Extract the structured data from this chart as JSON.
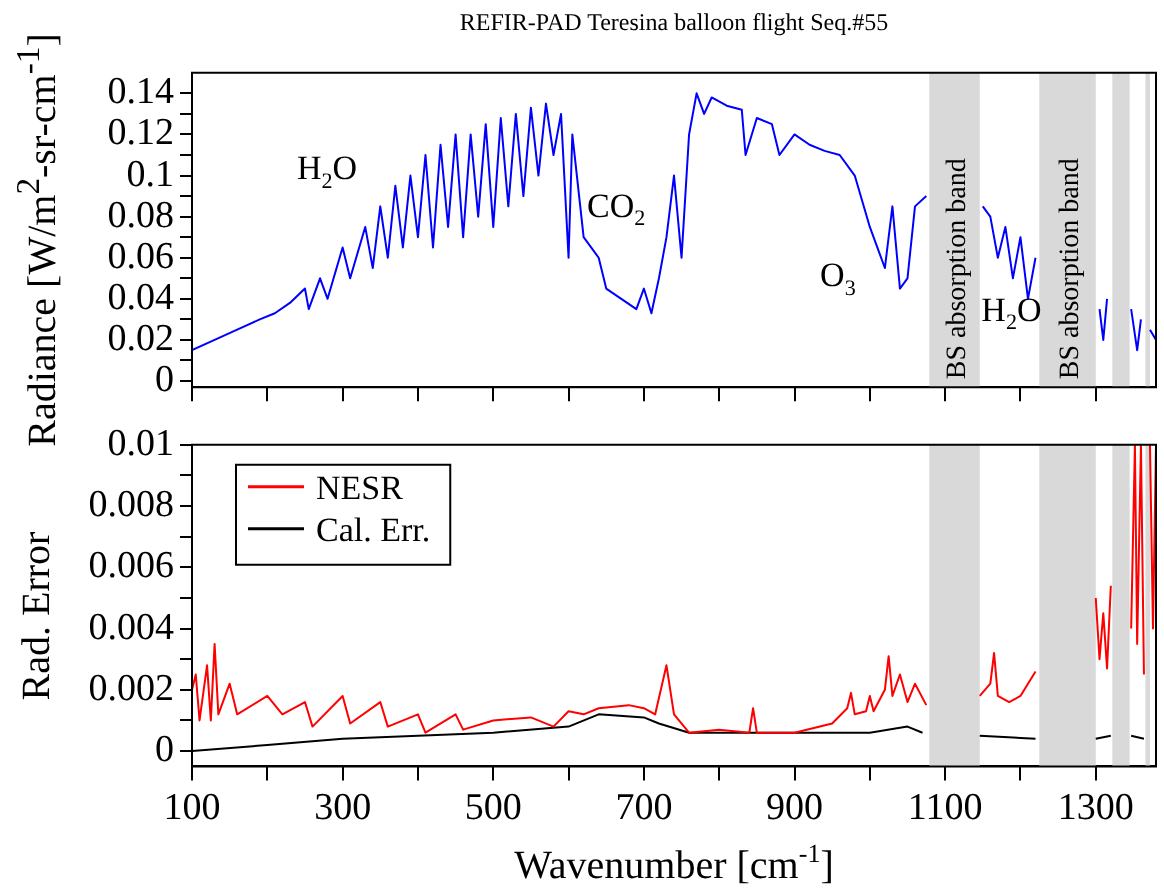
{
  "chart_data": [
    {
      "type": "line",
      "title": "REFIR-PAD Teresina balloon flight Seq.#55",
      "ylabel": "Radiance [W/m$^{2}$-sr-cm$^{-1}$]",
      "xlim": [
        100,
        1380
      ],
      "xticks": [
        100,
        {
          "value": 200,
          "label": null
        },
        300,
        {
          "value": 400,
          "label": null
        },
        500,
        {
          "value": 600,
          "label": null
        },
        700,
        {
          "value": 800,
          "label": null
        },
        900,
        {
          "value": 1000,
          "label": null
        },
        1100,
        {
          "value": 1200,
          "label": null
        },
        1300
      ],
      "ylim": [
        -0.003,
        0.15
      ],
      "yticks": [
        0,
        {
          "value": 0.01,
          "label": null
        },
        0.02,
        {
          "value": 0.03,
          "label": null
        },
        0.04,
        {
          "value": 0.05,
          "label": null
        },
        0.06,
        {
          "value": 0.07,
          "label": null
        },
        0.08,
        {
          "value": 0.09,
          "label": null
        },
        0.1,
        {
          "value": 0.11,
          "label": null
        },
        0.12,
        {
          "value": 0.13,
          "label": null
        },
        0.14
      ],
      "tick_labels": "y",
      "grid": false,
      "legend": false,
      "series": [
        {
          "color": "#0000ff",
          "x": [
            100,
            130,
            160,
            190,
            210,
            230,
            250,
            255,
            270,
            280,
            300,
            310,
            330,
            340,
            350,
            360,
            370,
            380,
            390,
            400,
            410,
            420,
            430,
            440,
            450,
            460,
            470,
            480,
            490,
            500,
            510,
            520,
            530,
            540,
            550,
            560,
            570,
            580,
            590,
            600,
            605,
            620,
            640,
            650,
            670,
            690,
            700,
            710,
            720,
            730,
            740,
            750,
            760,
            770,
            780,
            790,
            810,
            830,
            835,
            850,
            870,
            880,
            900,
            920,
            940,
            960,
            980,
            1000,
            1020,
            1030,
            1040,
            1050,
            1060,
            1075,
            1079,
            1150,
            1160,
            1170,
            1180,
            1190,
            1200,
            1210,
            1220,
            1225,
            1305,
            1310,
            1315,
            1322,
            1347,
            1355,
            1360,
            1366,
            1372,
            1380
          ],
          "values": [
            0.015,
            0.02,
            0.025,
            0.03,
            0.033,
            0.038,
            0.045,
            0.035,
            0.05,
            0.04,
            0.065,
            0.05,
            0.075,
            0.055,
            0.085,
            0.06,
            0.095,
            0.065,
            0.1,
            0.07,
            0.11,
            0.065,
            0.115,
            0.075,
            0.12,
            0.07,
            0.12,
            0.08,
            0.125,
            0.075,
            0.128,
            0.085,
            0.13,
            0.09,
            0.133,
            0.1,
            0.135,
            0.11,
            0.13,
            0.06,
            0.12,
            0.07,
            0.06,
            0.045,
            0.04,
            0.035,
            0.045,
            0.033,
            0.05,
            0.07,
            0.1,
            0.06,
            0.12,
            0.14,
            0.13,
            0.138,
            0.134,
            0.132,
            0.11,
            0.128,
            0.125,
            0.11,
            0.12,
            0.115,
            0.112,
            0.11,
            0.1,
            0.075,
            0.055,
            0.085,
            0.045,
            0.05,
            0.085,
            0.09,
            null,
            0.085,
            0.08,
            0.06,
            0.075,
            0.05,
            0.07,
            0.04,
            0.06,
            null,
            0.035,
            0.02,
            0.04,
            null,
            0.035,
            0.015,
            0.03,
            null,
            0.025,
            0.02
          ]
        }
      ],
      "bands": [
        {
          "axis": "x",
          "from": 1079,
          "to": 1146,
          "label": "BS absorption band",
          "color": "#d9d9d9"
        },
        {
          "axis": "x",
          "from": 1225,
          "to": 1300,
          "label": "BS absorption band",
          "color": "#d9d9d9"
        },
        {
          "axis": "x",
          "from": 1322,
          "to": 1345,
          "color": "#d9d9d9"
        },
        {
          "axis": "x",
          "from": 1366,
          "to": 1372,
          "color": "#d9d9d9"
        }
      ],
      "annotations": [
        "H$_{2}$O",
        "CO$_{2}$",
        "O$_{3}$",
        "H$_{2}$O"
      ]
    },
    {
      "type": "line",
      "xlabel": "Wavenumber [cm$^{-1}$]",
      "ylabel": "Rad. Error",
      "xlim": [
        100,
        1380
      ],
      "xticks": [
        100,
        {
          "value": 200,
          "label": null
        },
        300,
        {
          "value": 400,
          "label": null
        },
        500,
        {
          "value": 600,
          "label": null
        },
        700,
        {
          "value": 800,
          "label": null
        },
        900,
        {
          "value": 1000,
          "label": null
        },
        1100,
        {
          "value": 1200,
          "label": null
        },
        1300
      ],
      "ylim": [
        -0.0005,
        0.01
      ],
      "yticks": [
        0,
        {
          "value": 0.001,
          "label": null
        },
        0.002,
        {
          "value": 0.003,
          "label": null
        },
        0.004,
        {
          "value": 0.005,
          "label": null
        },
        0.006,
        {
          "value": 0.007,
          "label": null
        },
        0.008,
        {
          "value": 0.009,
          "label": null
        },
        0.01
      ],
      "grid": false,
      "legend": "top left",
      "series": [
        {
          "name": "NESR",
          "color": "#ff0000",
          "x": [
            100,
            105,
            110,
            120,
            125,
            130,
            135,
            150,
            160,
            200,
            220,
            250,
            260,
            300,
            310,
            350,
            360,
            400,
            410,
            450,
            460,
            500,
            550,
            580,
            600,
            620,
            640,
            680,
            700,
            715,
            730,
            740,
            760,
            800,
            840,
            845,
            850,
            900,
            950,
            970,
            975,
            980,
            995,
            1000,
            1005,
            1020,
            1025,
            1030,
            1040,
            1050,
            1060,
            1075,
            1079,
            1146,
            1160,
            1165,
            1170,
            1185,
            1200,
            1220,
            1225,
            1300,
            1305,
            1310,
            1315,
            1320,
            1322,
            1347,
            1352,
            1355,
            1360,
            1364,
            1366,
            1372,
            1376,
            1380
          ],
          "values": [
            0.002,
            0.0025,
            0.001,
            0.0028,
            0.001,
            0.0035,
            0.0012,
            0.0022,
            0.0012,
            0.0018,
            0.0012,
            0.0016,
            0.0008,
            0.0018,
            0.0009,
            0.0016,
            0.0008,
            0.0012,
            0.0006,
            0.0012,
            0.0007,
            0.001,
            0.0011,
            0.0008,
            0.0013,
            0.0012,
            0.0014,
            0.0015,
            0.0014,
            0.0012,
            0.0028,
            0.0012,
            0.0006,
            0.0007,
            0.0006,
            0.0014,
            0.0006,
            0.0006,
            0.0009,
            0.0014,
            0.0019,
            0.0012,
            0.0013,
            0.0018,
            0.0013,
            0.002,
            0.0031,
            0.0018,
            0.0025,
            0.0016,
            0.0022,
            0.0015,
            null,
            0.0018,
            0.0022,
            0.0032,
            0.0018,
            0.0016,
            0.0018,
            0.0026,
            null,
            0.005,
            0.003,
            0.0045,
            0.0027,
            0.0054,
            null,
            0.004,
            0.01,
            0.0035,
            0.01,
            0.0025,
            null,
            0.01,
            0.004,
            0.01
          ]
        },
        {
          "name": "Cal. Err.",
          "color": "#000000",
          "x": [
            100,
            200,
            300,
            400,
            500,
            600,
            640,
            700,
            720,
            760,
            900,
            1000,
            1050,
            1070,
            1079,
            1146,
            1220,
            1225,
            1300,
            1320,
            1322,
            1347,
            1364
          ],
          "values": [
            0,
            0.0002,
            0.0004,
            0.0005,
            0.0006,
            0.0008,
            0.0012,
            0.0011,
            0.0009,
            0.0006,
            0.0006,
            0.0006,
            0.0008,
            0.0006,
            null,
            0.0005,
            0.0004,
            null,
            0.0004,
            0.0005,
            null,
            0.0005,
            0.0004
          ]
        }
      ],
      "bands": [
        {
          "axis": "x",
          "from": 1079,
          "to": 1146,
          "color": "#d9d9d9"
        },
        {
          "axis": "x",
          "from": 1225,
          "to": 1300,
          "color": "#d9d9d9"
        },
        {
          "axis": "x",
          "from": 1322,
          "to": 1345,
          "color": "#d9d9d9"
        },
        {
          "axis": "x",
          "from": 1366,
          "to": 1372,
          "color": "#d9d9d9"
        }
      ]
    }
  ]
}
